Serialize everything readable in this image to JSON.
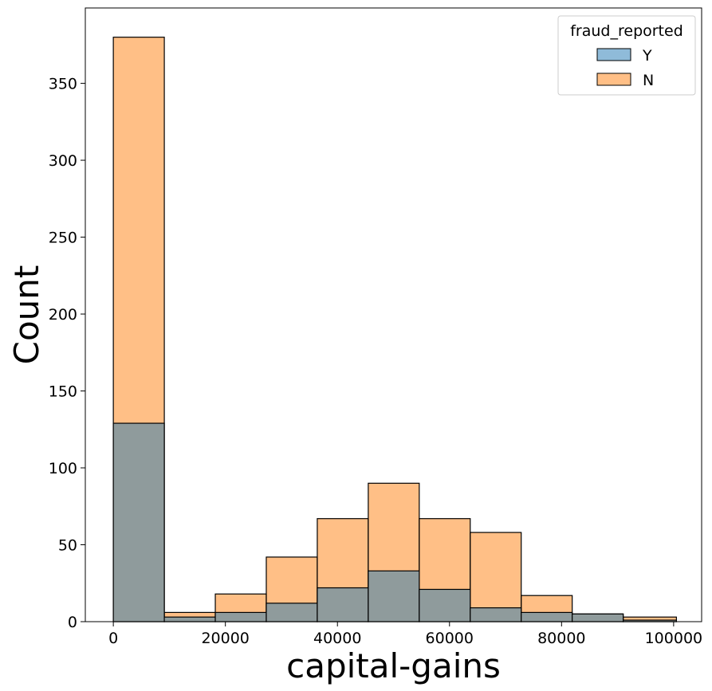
{
  "chart_data": {
    "type": "bar",
    "subtype": "histogram-overlay",
    "title": "",
    "xlabel": "capital-gains",
    "ylabel": "Count",
    "xlim": [
      -5000,
      105000
    ],
    "ylim": [
      0,
      399
    ],
    "bins": [
      [
        0,
        9100
      ],
      [
        9100,
        18200
      ],
      [
        18200,
        27300
      ],
      [
        27300,
        36400
      ],
      [
        36400,
        45500
      ],
      [
        45500,
        54600
      ],
      [
        54600,
        63700
      ],
      [
        63700,
        72800
      ],
      [
        72800,
        81900
      ],
      [
        81900,
        91000
      ],
      [
        91000,
        100500
      ]
    ],
    "series": [
      {
        "name": "Y",
        "color": "#1f77b4",
        "values": [
          129,
          3,
          6,
          12,
          22,
          33,
          21,
          9,
          6,
          5,
          1
        ]
      },
      {
        "name": "N",
        "color": "#ff7f0e",
        "values": [
          380,
          6,
          18,
          42,
          67,
          90,
          67,
          58,
          17,
          5,
          3
        ]
      }
    ],
    "overlap_color": "#8f9b9c",
    "x_ticks": [
      0,
      20000,
      40000,
      60000,
      80000,
      100000
    ],
    "x_tick_labels": [
      "0",
      "20000",
      "40000",
      "60000",
      "80000",
      "100000"
    ],
    "y_ticks": [
      0,
      50,
      100,
      150,
      200,
      250,
      300,
      350
    ],
    "y_tick_labels": [
      "0",
      "50",
      "100",
      "150",
      "200",
      "250",
      "300",
      "350"
    ],
    "grid": false,
    "legend": {
      "title": "fraud_reported",
      "placement": "top-right"
    }
  }
}
